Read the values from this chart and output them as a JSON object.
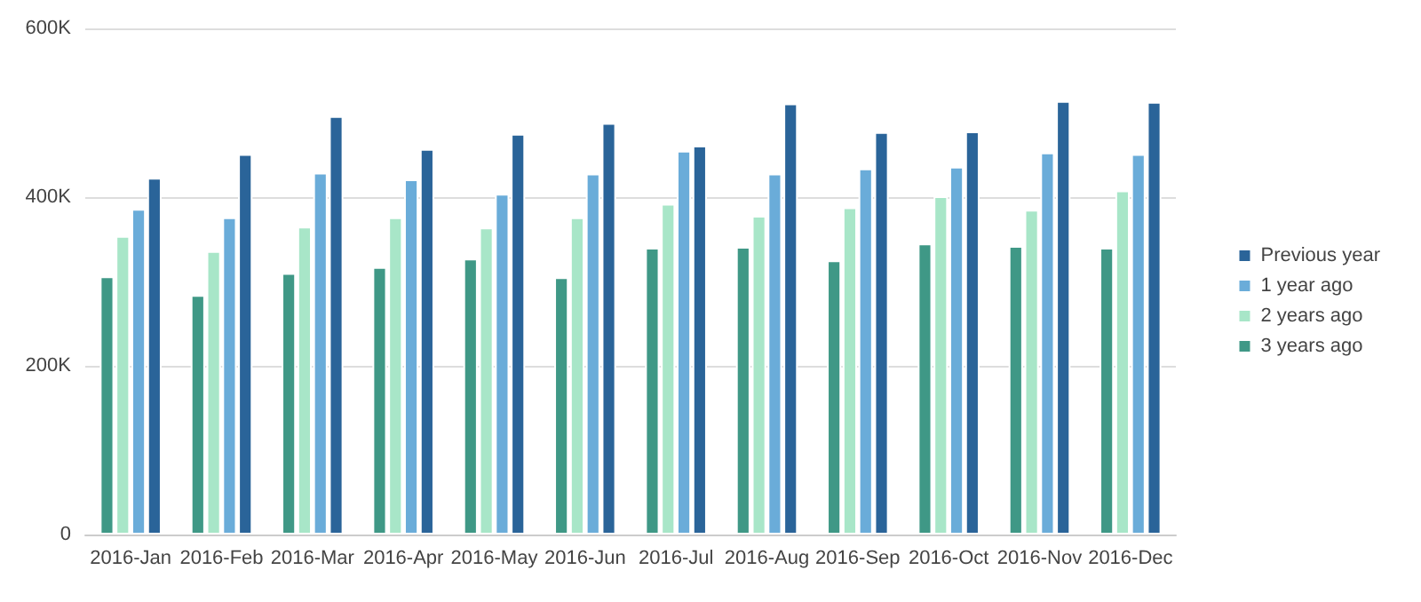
{
  "chart_data": {
    "type": "bar",
    "categories": [
      "2016-Jan",
      "2016-Feb",
      "2016-Mar",
      "2016-Apr",
      "2016-May",
      "2016-Jun",
      "2016-Jul",
      "2016-Aug",
      "2016-Sep",
      "2016-Oct",
      "2016-Nov",
      "2016-Dec"
    ],
    "series": [
      {
        "name": "3 years ago",
        "color": "#3f9886",
        "values": [
          306000,
          284000,
          310000,
          317000,
          327000,
          305000,
          340000,
          341000,
          325000,
          345000,
          342000,
          340000
        ]
      },
      {
        "name": "2 years ago",
        "color": "#a8e6c8",
        "values": [
          354000,
          336000,
          365000,
          376000,
          364000,
          376000,
          392000,
          378000,
          388000,
          401000,
          385000,
          408000
        ]
      },
      {
        "name": "1 year ago",
        "color": "#6aacd9",
        "values": [
          386000,
          376000,
          429000,
          421000,
          404000,
          428000,
          455000,
          428000,
          434000,
          436000,
          453000,
          451000
        ]
      },
      {
        "name": "Previous year",
        "color": "#2a6499",
        "values": [
          423000,
          451000,
          496000,
          457000,
          475000,
          488000,
          461000,
          511000,
          477000,
          478000,
          514000,
          513000
        ]
      }
    ],
    "ylim": [
      0,
      600000
    ],
    "yticks": [
      0,
      {
        "value": 200000,
        "label": "200K"
      },
      {
        "value": 400000,
        "label": "400K"
      },
      {
        "value": 600000,
        "label": "600K"
      }
    ],
    "grid": "y",
    "legend": "right"
  }
}
